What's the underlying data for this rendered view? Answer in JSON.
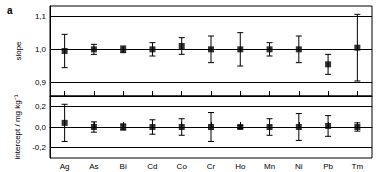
{
  "chart_data": [
    {
      "type": "scatter",
      "title": "a",
      "categories": [
        "Ag",
        "As",
        "Bi",
        "Cd",
        "Co",
        "Cr",
        "Ho",
        "Mn",
        "Ni",
        "Pb",
        "Tm"
      ],
      "values": [
        0.995,
        1.0,
        1.0,
        1.0,
        1.01,
        1.0,
        1.0,
        1.0,
        1.0,
        0.955,
        1.005
      ],
      "errors": [
        0.05,
        0.015,
        0.01,
        0.02,
        0.025,
        0.04,
        0.05,
        0.02,
        0.04,
        0.03,
        0.1
      ],
      "ylabel": "slope",
      "ylim": [
        0.86,
        1.13
      ],
      "yticks": [
        {
          "value": 0.9,
          "label": "0,9"
        },
        {
          "value": 1.0,
          "label": "1,0"
        },
        {
          "value": 1.1,
          "label": "1,1"
        }
      ],
      "grid": true,
      "marker": "square",
      "color": "#000000",
      "tick_labels": "y"
    },
    {
      "type": "scatter",
      "categories": [
        "Ag",
        "As",
        "Bi",
        "Cd",
        "Co",
        "Cr",
        "Ho",
        "Mn",
        "Ni",
        "Pb",
        "Tm"
      ],
      "values": [
        0.04,
        0.0,
        0.0,
        0.0,
        0.0,
        0.0,
        0.0,
        0.0,
        0.0,
        0.01,
        0.0
      ],
      "errors": [
        0.18,
        0.05,
        0.03,
        0.07,
        0.08,
        0.14,
        0.015,
        0.08,
        0.13,
        0.1,
        0.04
      ],
      "ylabel": "intercept / mg kg⁻¹",
      "ylim": [
        -0.3,
        0.3
      ],
      "yticks": [
        {
          "value": -0.2,
          "label": "-0,2"
        },
        {
          "value": 0.0,
          "label": "0,0"
        },
        {
          "value": 0.2,
          "label": "0,2"
        }
      ],
      "grid": true,
      "marker": "square",
      "color": "#000000",
      "tick_labels": true
    }
  ]
}
